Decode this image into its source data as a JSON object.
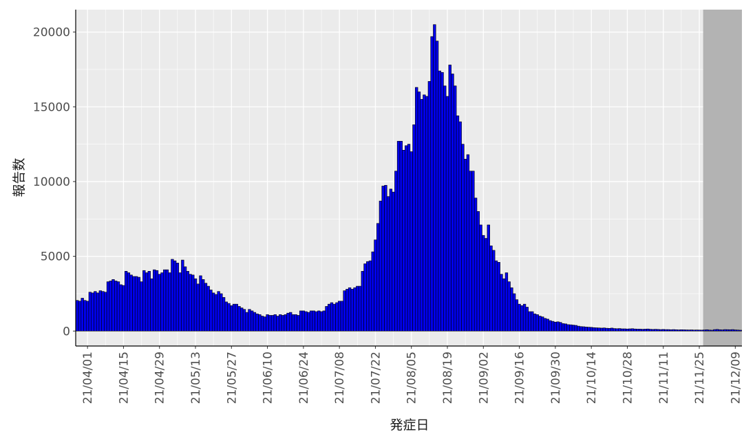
{
  "chart_data": {
    "type": "bar",
    "x_label": "発症日",
    "y_label": "報告数",
    "color": "#0000ee",
    "grid": true,
    "ylim": [
      -1000,
      21500
    ],
    "yticks": [
      0,
      5000,
      10000,
      15000,
      20000
    ],
    "y_minor_grid": [
      2500,
      7500,
      12500,
      17500
    ],
    "shade_from": "21/11/27",
    "xticks": [
      "21/04/01",
      "21/04/15",
      "21/04/29",
      "21/05/13",
      "21/05/27",
      "21/06/10",
      "21/06/24",
      "21/07/08",
      "21/07/22",
      "21/08/05",
      "21/08/19",
      "21/09/02",
      "21/09/16",
      "21/09/30",
      "21/10/14",
      "21/10/28",
      "21/11/11",
      "21/11/25",
      "21/12/09"
    ],
    "x": [
      "21/03/28",
      "21/03/29",
      "21/03/30",
      "21/03/31",
      "21/04/01",
      "21/04/02",
      "21/04/03",
      "21/04/04",
      "21/04/05",
      "21/04/06",
      "21/04/07",
      "21/04/08",
      "21/04/09",
      "21/04/10",
      "21/04/11",
      "21/04/12",
      "21/04/13",
      "21/04/14",
      "21/04/15",
      "21/04/16",
      "21/04/17",
      "21/04/18",
      "21/04/19",
      "21/04/20",
      "21/04/21",
      "21/04/22",
      "21/04/23",
      "21/04/24",
      "21/04/25",
      "21/04/26",
      "21/04/27",
      "21/04/28",
      "21/04/29",
      "21/04/30",
      "21/05/01",
      "21/05/02",
      "21/05/03",
      "21/05/04",
      "21/05/05",
      "21/05/06",
      "21/05/07",
      "21/05/08",
      "21/05/09",
      "21/05/10",
      "21/05/11",
      "21/05/12",
      "21/05/13",
      "21/05/14",
      "21/05/15",
      "21/05/16",
      "21/05/17",
      "21/05/18",
      "21/05/19",
      "21/05/20",
      "21/05/21",
      "21/05/22",
      "21/05/23",
      "21/05/24",
      "21/05/25",
      "21/05/26",
      "21/05/27",
      "21/05/28",
      "21/05/29",
      "21/05/30",
      "21/05/31",
      "21/06/01",
      "21/06/02",
      "21/06/03",
      "21/06/04",
      "21/06/05",
      "21/06/06",
      "21/06/07",
      "21/06/08",
      "21/06/09",
      "21/06/10",
      "21/06/11",
      "21/06/12",
      "21/06/13",
      "21/06/14",
      "21/06/15",
      "21/06/16",
      "21/06/17",
      "21/06/18",
      "21/06/19",
      "21/06/20",
      "21/06/21",
      "21/06/22",
      "21/06/23",
      "21/06/24",
      "21/06/25",
      "21/06/26",
      "21/06/27",
      "21/06/28",
      "21/06/29",
      "21/06/30",
      "21/07/01",
      "21/07/02",
      "21/07/03",
      "21/07/04",
      "21/07/05",
      "21/07/06",
      "21/07/07",
      "21/07/08",
      "21/07/09",
      "21/07/10",
      "21/07/11",
      "21/07/12",
      "21/07/13",
      "21/07/14",
      "21/07/15",
      "21/07/16",
      "21/07/17",
      "21/07/18",
      "21/07/19",
      "21/07/20",
      "21/07/21",
      "21/07/22",
      "21/07/23",
      "21/07/24",
      "21/07/25",
      "21/07/26",
      "21/07/27",
      "21/07/28",
      "21/07/29",
      "21/07/30",
      "21/07/31",
      "21/08/01",
      "21/08/02",
      "21/08/03",
      "21/08/04",
      "21/08/05",
      "21/08/06",
      "21/08/07",
      "21/08/08",
      "21/08/09",
      "21/08/10",
      "21/08/11",
      "21/08/12",
      "21/08/13",
      "21/08/14",
      "21/08/15",
      "21/08/16",
      "21/08/17",
      "21/08/18",
      "21/08/19",
      "21/08/20",
      "21/08/21",
      "21/08/22",
      "21/08/23",
      "21/08/24",
      "21/08/25",
      "21/08/26",
      "21/08/27",
      "21/08/28",
      "21/08/29",
      "21/08/30",
      "21/08/31",
      "21/09/01",
      "21/09/02",
      "21/09/03",
      "21/09/04",
      "21/09/05",
      "21/09/06",
      "21/09/07",
      "21/09/08",
      "21/09/09",
      "21/09/10",
      "21/09/11",
      "21/09/12",
      "21/09/13",
      "21/09/14",
      "21/09/15",
      "21/09/16",
      "21/09/17",
      "21/09/18",
      "21/09/19",
      "21/09/20",
      "21/09/21",
      "21/09/22",
      "21/09/23",
      "21/09/24",
      "21/09/25",
      "21/09/26",
      "21/09/27",
      "21/09/28",
      "21/09/29",
      "21/09/30",
      "21/10/01",
      "21/10/02",
      "21/10/03",
      "21/10/04",
      "21/10/05",
      "21/10/06",
      "21/10/07",
      "21/10/08",
      "21/10/09",
      "21/10/10",
      "21/10/11",
      "21/10/12",
      "21/10/13",
      "21/10/14",
      "21/10/15",
      "21/10/16",
      "21/10/17",
      "21/10/18",
      "21/10/19",
      "21/10/20",
      "21/10/21",
      "21/10/22",
      "21/10/23",
      "21/10/24",
      "21/10/25",
      "21/10/26",
      "21/10/27",
      "21/10/28",
      "21/10/29",
      "21/10/30",
      "21/10/31",
      "21/11/01",
      "21/11/02",
      "21/11/03",
      "21/11/04",
      "21/11/05",
      "21/11/06",
      "21/11/07",
      "21/11/08",
      "21/11/09",
      "21/11/10",
      "21/11/11",
      "21/11/12",
      "21/11/13",
      "21/11/14",
      "21/11/15",
      "21/11/16",
      "21/11/17",
      "21/11/18",
      "21/11/19",
      "21/11/20",
      "21/11/21",
      "21/11/22",
      "21/11/23",
      "21/11/24",
      "21/11/25",
      "21/11/26",
      "21/11/27",
      "21/11/28",
      "21/11/29",
      "21/11/30",
      "21/12/01",
      "21/12/02",
      "21/12/03",
      "21/12/04",
      "21/12/05",
      "21/12/06",
      "21/12/07",
      "21/12/08",
      "21/12/09",
      "21/12/10",
      "21/12/11"
    ],
    "values": [
      2050,
      2000,
      2200,
      2050,
      2000,
      2600,
      2550,
      2650,
      2550,
      2700,
      2650,
      2600,
      3300,
      3350,
      3450,
      3350,
      3300,
      3100,
      3050,
      4000,
      3900,
      3750,
      3650,
      3650,
      3600,
      3300,
      4050,
      3900,
      4000,
      3500,
      4100,
      4050,
      3800,
      3900,
      4100,
      4100,
      3900,
      4800,
      4700,
      4550,
      3900,
      4750,
      4300,
      4000,
      3800,
      3750,
      3500,
      3150,
      3700,
      3450,
      3200,
      3000,
      2750,
      2550,
      2450,
      2650,
      2500,
      2250,
      1950,
      1850,
      1700,
      1800,
      1800,
      1650,
      1550,
      1450,
      1250,
      1450,
      1350,
      1250,
      1150,
      1100,
      1000,
      950,
      1100,
      1050,
      1050,
      1100,
      1000,
      1100,
      1050,
      1100,
      1200,
      1250,
      1100,
      1100,
      1050,
      1350,
      1350,
      1300,
      1250,
      1350,
      1350,
      1300,
      1350,
      1300,
      1350,
      1650,
      1800,
      1900,
      1800,
      1900,
      2000,
      2000,
      2700,
      2800,
      2900,
      2800,
      2900,
      3000,
      3000,
      4000,
      4500,
      4650,
      4700,
      5300,
      6100,
      7200,
      8700,
      9700,
      9750,
      9000,
      9500,
      9300,
      10700,
      12700,
      12700,
      12100,
      12400,
      12500,
      12000,
      13800,
      16300,
      16000,
      15500,
      15800,
      15700,
      16700,
      19700,
      20500,
      19400,
      17400,
      17300,
      16400,
      15700,
      17800,
      17200,
      16400,
      14400,
      14000,
      12500,
      11500,
      11800,
      10700,
      10700,
      8900,
      8000,
      7100,
      6400,
      6200,
      7100,
      5700,
      5400,
      4700,
      4600,
      3800,
      3500,
      3900,
      3300,
      2900,
      2500,
      2100,
      1800,
      1700,
      1800,
      1600,
      1300,
      1300,
      1150,
      1100,
      1000,
      950,
      850,
      800,
      700,
      650,
      600,
      620,
      580,
      500,
      480,
      430,
      420,
      400,
      380,
      330,
      300,
      290,
      270,
      260,
      250,
      230,
      220,
      210,
      200,
      210,
      190,
      180,
      200,
      170,
      160,
      170,
      150,
      150,
      140,
      150,
      160,
      140,
      130,
      130,
      120,
      130,
      140,
      120,
      110,
      120,
      110,
      100,
      110,
      100,
      100,
      90,
      100,
      90,
      80,
      90,
      85,
      80,
      75,
      80,
      70,
      75,
      70,
      65,
      80,
      90,
      70,
      60,
      100,
      110,
      90,
      80,
      100,
      95,
      90,
      100,
      80,
      70,
      60
    ]
  }
}
